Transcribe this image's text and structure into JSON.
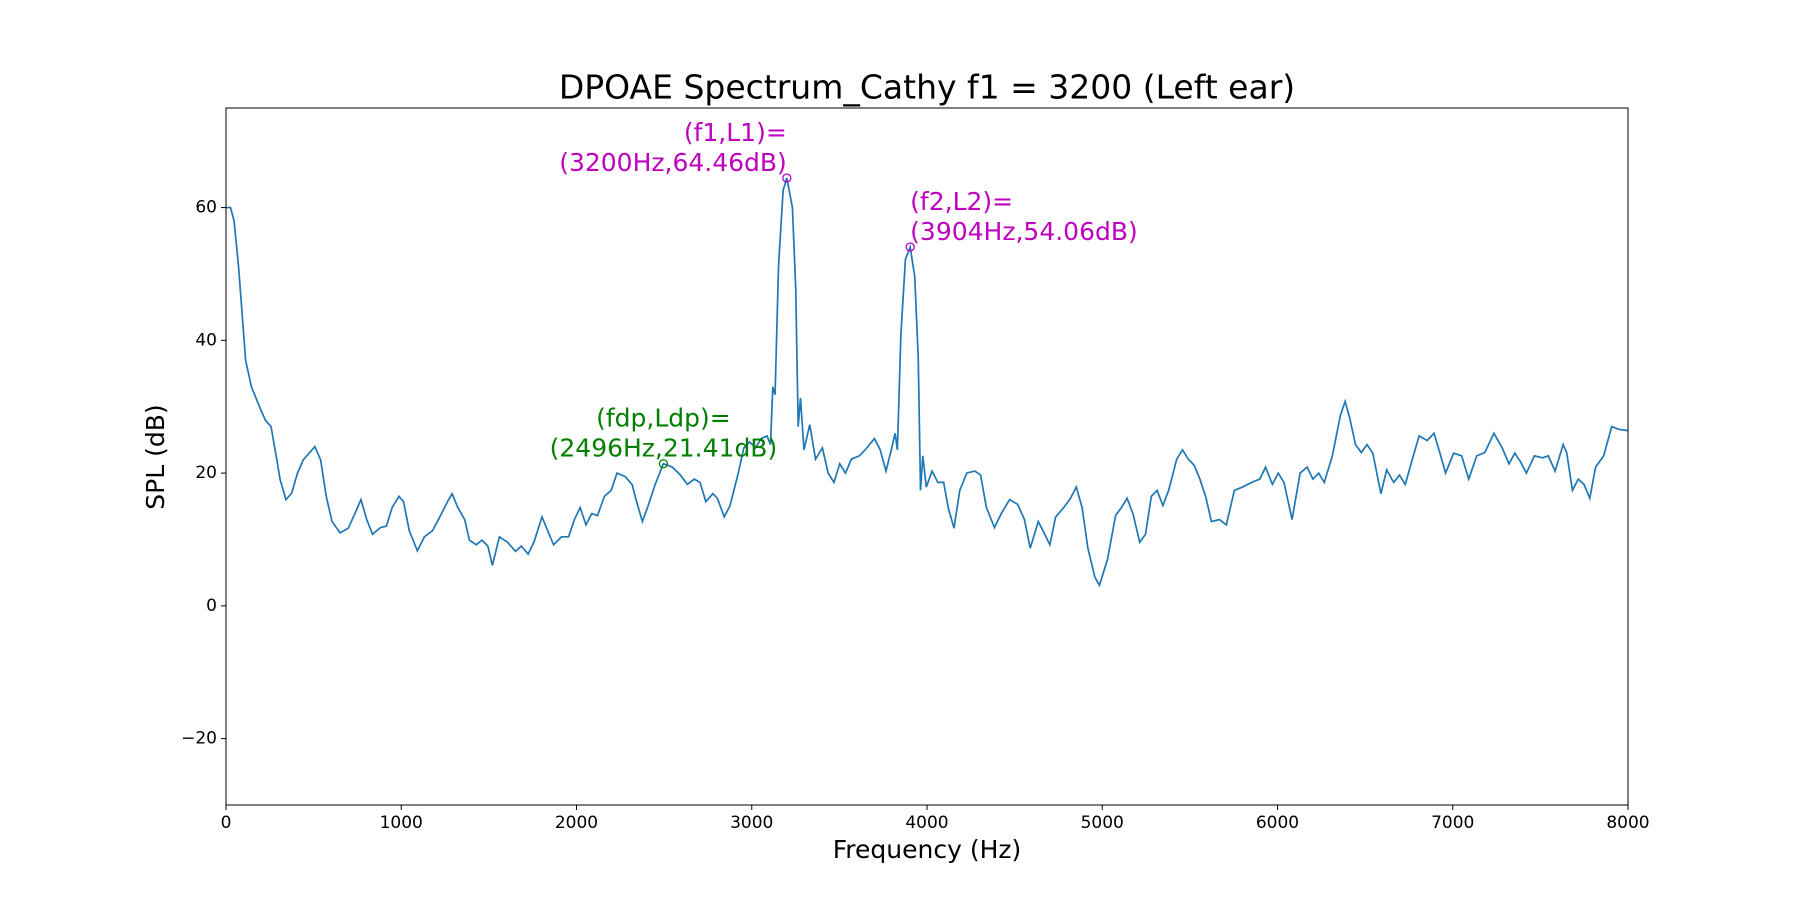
{
  "chart_data": {
    "type": "line",
    "title": "DPOAE Spectrum_Cathy f1 = 3200 (Left ear)",
    "x_label": "Frequency (Hz)",
    "y_label": "SPL (dB)",
    "xlim": [
      0,
      8000
    ],
    "ylim": [
      -30,
      75
    ],
    "xticks": [
      0,
      1000,
      2000,
      3000,
      4000,
      5000,
      6000,
      7000,
      8000
    ],
    "yticks": [
      {
        "value": -20,
        "label": "−20"
      },
      0,
      20,
      40,
      60
    ],
    "grid": false,
    "series": [
      {
        "color": "#1f77b4",
        "x": [
          0,
          26,
          46,
          72,
          92,
          112,
          145,
          191,
          224,
          257,
          290,
          309,
          342,
          375,
          408,
          441,
          474,
          507,
          540,
          572,
          605,
          651,
          698,
          737,
          770,
          803,
          836,
          882,
          915,
          948,
          987,
          1013,
          1046,
          1092,
          1132,
          1178,
          1224,
          1264,
          1290,
          1323,
          1362,
          1389,
          1428,
          1461,
          1494,
          1520,
          1560,
          1606,
          1652,
          1685,
          1724,
          1757,
          1803,
          1836,
          1869,
          1915,
          1955,
          1988,
          2021,
          2054,
          2087,
          2120,
          2159,
          2198,
          2231,
          2277,
          2317,
          2343,
          2376,
          2409,
          2449,
          2496,
          2547,
          2593,
          2633,
          2672,
          2705,
          2738,
          2778,
          2804,
          2843,
          2876,
          2923,
          2955,
          2988,
          3021,
          3054,
          3087,
          3107,
          3120,
          3133,
          3153,
          3179,
          3200,
          3232,
          3251,
          3265,
          3278,
          3298,
          3331,
          3364,
          3403,
          3436,
          3469,
          3502,
          3535,
          3568,
          3614,
          3647,
          3700,
          3733,
          3766,
          3799,
          3818,
          3831,
          3851,
          3877,
          3904,
          3930,
          3950,
          3963,
          3976,
          3996,
          4029,
          4062,
          4095,
          4121,
          4154,
          4187,
          4227,
          4273,
          4306,
          4339,
          4385,
          4424,
          4471,
          4517,
          4556,
          4589,
          4635,
          4668,
          4701,
          4734,
          4780,
          4819,
          4852,
          4885,
          4918,
          4958,
          4984,
          5030,
          5076,
          5109,
          5142,
          5175,
          5214,
          5247,
          5280,
          5313,
          5346,
          5379,
          5425,
          5458,
          5491,
          5524,
          5557,
          5590,
          5623,
          5669,
          5708,
          5754,
          5800,
          5853,
          5899,
          5932,
          5971,
          6004,
          6037,
          6083,
          6129,
          6169,
          6202,
          6235,
          6267,
          6313,
          6359,
          6386,
          6412,
          6445,
          6478,
          6511,
          6544,
          6590,
          6623,
          6663,
          6696,
          6729,
          6775,
          6808,
          6854,
          6893,
          6926,
          6959,
          7005,
          7051,
          7091,
          7137,
          7183,
          7235,
          7282,
          7321,
          7354,
          7387,
          7420,
          7466,
          7512,
          7545,
          7584,
          7630,
          7650,
          7683,
          7716,
          7749,
          7782,
          7815,
          7861,
          7907,
          7947,
          8000
        ],
        "values": [
          60,
          60,
          58,
          51,
          44,
          37,
          33,
          30,
          28,
          27,
          22,
          19,
          16,
          17,
          20,
          22,
          23,
          24,
          22,
          16.5,
          12.7,
          11,
          11.7,
          14,
          16,
          13,
          10.8,
          11.8,
          12,
          14.8,
          16.5,
          15.7,
          11.3,
          8.3,
          10.4,
          11.3,
          13.6,
          15.7,
          16.9,
          14.8,
          13,
          9.9,
          9.2,
          9.9,
          9,
          6.1,
          10.4,
          9.6,
          8.2,
          9,
          7.8,
          9.6,
          13.4,
          11.3,
          9.2,
          10.4,
          10.4,
          13,
          14.8,
          12.2,
          13.9,
          13.6,
          16.5,
          17.4,
          20,
          19.5,
          18.3,
          15.7,
          12.7,
          15.1,
          18.3,
          21.41,
          20.9,
          19.7,
          18.3,
          19.1,
          18.6,
          15.7,
          16.9,
          16.2,
          13.4,
          15.1,
          20,
          23.8,
          24.7,
          23.8,
          25.2,
          25.6,
          24.3,
          33,
          31.8,
          51.3,
          62.6,
          64.46,
          60,
          47.8,
          27,
          31.3,
          23.5,
          27.3,
          22.1,
          23.8,
          20,
          18.6,
          21.4,
          20,
          22.1,
          22.6,
          23.5,
          25.2,
          23.5,
          20.3,
          23.8,
          26,
          23.5,
          40.9,
          52.2,
          54.06,
          49.6,
          37.4,
          17.4,
          22.6,
          17.9,
          20.3,
          18.6,
          18.6,
          14.8,
          11.7,
          17.4,
          20,
          20.3,
          19.7,
          14.8,
          11.8,
          13.9,
          16,
          15.3,
          13,
          8.7,
          12.7,
          11,
          9.2,
          13.4,
          14.8,
          16.2,
          17.9,
          14.8,
          8.7,
          4.3,
          3.1,
          7,
          13.6,
          14.8,
          16.2,
          13.9,
          9.6,
          10.8,
          16.5,
          17.4,
          15.1,
          17.4,
          22.1,
          23.5,
          22.1,
          21.2,
          19.1,
          16.5,
          12.7,
          13,
          12.2,
          17.4,
          17.9,
          18.6,
          19.1,
          20.9,
          18.3,
          20,
          18.6,
          13,
          20,
          20.9,
          19.1,
          20,
          18.6,
          22.6,
          28.7,
          30.8,
          28.3,
          24.3,
          23.1,
          24.3,
          23,
          16.9,
          20.5,
          18.6,
          19.7,
          18.3,
          22.6,
          25.6,
          24.9,
          26,
          23.1,
          20,
          23,
          22.6,
          19.1,
          22.6,
          23.1,
          26,
          23.8,
          21.4,
          23,
          21.7,
          20,
          22.6,
          22.3,
          22.6,
          20.3,
          24.3,
          23.1,
          17.4,
          19.1,
          18.3,
          16.2,
          20.9,
          22.6,
          27,
          26.6,
          26.4
        ]
      }
    ],
    "annotations": [
      {
        "lines": [
          "(f1,L1)=",
          "(3200Hz,64.46dB)"
        ],
        "x": 3200,
        "y": 64.46,
        "color": "#bf00bf",
        "align": "right"
      },
      {
        "lines": [
          "(f2,L2)=",
          "(3904Hz,54.06dB)"
        ],
        "x": 3904,
        "y": 54.06,
        "color": "#bf00bf",
        "align": "left"
      },
      {
        "lines": [
          "(fdp,Ldp)=",
          "(2496Hz,21.41dB)"
        ],
        "x": 2496,
        "y": 21.41,
        "color": "#008000",
        "align": "center"
      }
    ]
  }
}
